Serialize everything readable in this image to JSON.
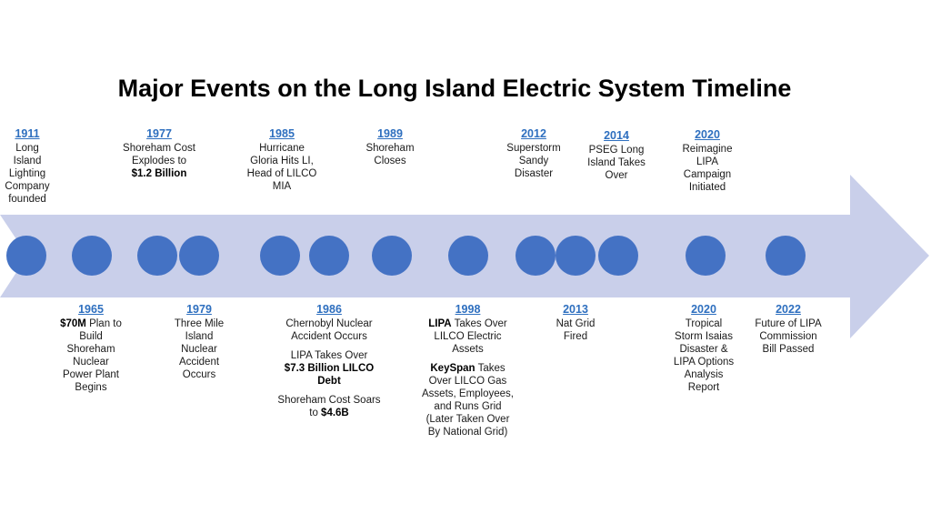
{
  "title": "Major Events on the Long Island Electric System Timeline",
  "colors": {
    "arrow": "#c9cfea",
    "dot": "#4472c4",
    "year": "#2e6fbf"
  },
  "events_top": [
    {
      "year": "1911",
      "lines": [
        "Long",
        "Island",
        "Lighting",
        "Company",
        "founded"
      ]
    },
    {
      "year": "1977",
      "lines": [
        "Shoreham  Cost",
        "Explodes  to"
      ],
      "bold": "$1.2 Billion"
    },
    {
      "year": "1985",
      "lines": [
        "Hurricane",
        "Gloria Hits LI,",
        "Head of LILCO",
        "MIA"
      ]
    },
    {
      "year": "1989",
      "lines": [
        "Shoreham",
        "Closes"
      ]
    },
    {
      "year": "2012",
      "lines": [
        "Superstorm",
        "Sandy",
        "Disaster"
      ]
    },
    {
      "year": "2014",
      "lines": [
        "PSEG Long",
        "Island Takes",
        "Over"
      ]
    },
    {
      "year": "2020",
      "lines": [
        "Reimagine",
        "LIPA",
        "Campaign",
        "Initiated"
      ]
    }
  ],
  "events_bottom": [
    {
      "year": "1965",
      "bold": "$70M",
      "rest": " Plan to",
      "lines": [
        "Build",
        "Shoreham",
        "Nuclear",
        "Power Plant",
        "Begins"
      ]
    },
    {
      "year": "1979",
      "lines": [
        "Three Mile",
        "Island",
        "Nuclear",
        "Accident",
        "Occurs"
      ]
    },
    {
      "year": "1986",
      "p1": [
        "Chernobyl  Nuclear",
        "Accident Occurs"
      ],
      "p2_line": "LIPA Takes Over",
      "p2_bold": [
        "$7.3 Billion LILCO",
        "Debt"
      ],
      "p3_line": "Shoreham  Cost Soars",
      "p3_pre": "to ",
      "p3_bold": "$4.6B"
    },
    {
      "year": "1998",
      "p1_bold": "LIPA",
      "p1_rest": " Takes Over",
      "p1_lines": [
        "LILCO Electric",
        "Assets"
      ],
      "p2_bold": "KeySpan",
      "p2_rest": " Takes",
      "p2_lines": [
        "Over LILCO Gas",
        "Assets, Employees,",
        "and Runs Grid",
        "(Later Taken Over",
        "By National Grid)"
      ]
    },
    {
      "year": "2013",
      "lines": [
        "Nat Grid",
        "Fired"
      ]
    },
    {
      "year": "2020",
      "lines": [
        "Tropical",
        "Storm  Isaias",
        "Disaster &",
        "LIPA Options",
        "Analysis",
        "Report"
      ]
    },
    {
      "year": "2022",
      "lines": [
        "Future of LIPA",
        "Commission",
        "Bill Passed"
      ]
    }
  ]
}
